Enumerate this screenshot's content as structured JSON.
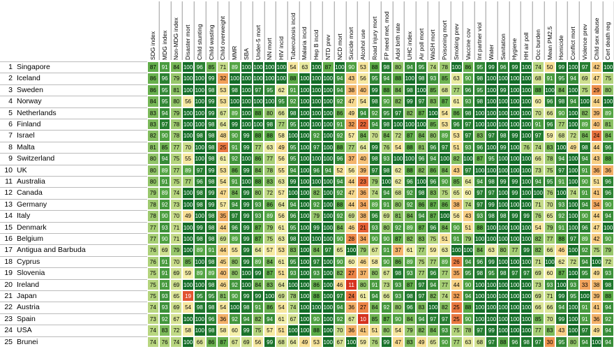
{
  "table": {
    "columns": [
      "SDG index",
      "MDG index",
      "Non-MDG index",
      "Disaster mort",
      "Child stunting",
      "Child wasting",
      "Child overweight",
      "MMR",
      "SBA",
      "Under-5 mort",
      "NN mort",
      "HIV incid",
      "Tuberculosis incid",
      "Malaria incid",
      "Hep B incid",
      "NTD prev",
      "NCD mort",
      "Suicide mort",
      "Alcohol use",
      "Road injury mort",
      "FP need met, mod",
      "Adol birth rate",
      "UHC index",
      "Air poll mort",
      "WaSH mort",
      "Poisoning mort",
      "Smoking prev",
      "Vaccine cov",
      "Int partner viol",
      "Water",
      "Sanitation",
      "Hygiene",
      "HH air poll",
      "Occ burden",
      "Mean PM2.5",
      "Homicide",
      "Conflict mort",
      "Violence prev",
      "Child sex abuse",
      "Cert death reg"
    ],
    "rows": [
      {
        "rank": 1,
        "country": "Singapore",
        "values": [
          87,
          91,
          84,
          100,
          96,
          85,
          71,
          89,
          100,
          100,
          100,
          100,
          54,
          63,
          100,
          87,
          100,
          90,
          53,
          88,
          98,
          80,
          94,
          95,
          74,
          78,
          100,
          86,
          95,
          99,
          96,
          99,
          100,
          74,
          50,
          99,
          100,
          97,
          42,
          100
        ]
      },
      {
        "rank": 2,
        "country": "Iceland",
        "values": [
          86,
          96,
          79,
          100,
          100,
          99,
          32,
          100,
          100,
          100,
          100,
          100,
          88,
          100,
          100,
          100,
          94,
          43,
          56,
          95,
          94,
          88,
          100,
          98,
          93,
          85,
          63,
          90,
          98,
          100,
          100,
          100,
          100,
          68,
          91,
          95,
          94,
          69,
          47,
          75
        ]
      },
      {
        "rank": 3,
        "country": "Sweden",
        "values": [
          86,
          95,
          81,
          100,
          100,
          98,
          53,
          98,
          100,
          97,
          95,
          62,
          91,
          100,
          100,
          100,
          94,
          38,
          40,
          99,
          88,
          84,
          98,
          100,
          85,
          68,
          77,
          96,
          95,
          100,
          99,
          100,
          100,
          88,
          100,
          84,
          100,
          75,
          29,
          80
        ]
      },
      {
        "rank": 4,
        "country": "Norway",
        "values": [
          84,
          95,
          80,
          56,
          100,
          99,
          53,
          100,
          100,
          100,
          100,
          95,
          92,
          100,
          100,
          100,
          92,
          47,
          54,
          98,
          90,
          82,
          99,
          97,
          83,
          87,
          61,
          93,
          98,
          100,
          100,
          100,
          100,
          60,
          96,
          98,
          94,
          100,
          44,
          100
        ]
      },
      {
        "rank": 5,
        "country": "Netherlands",
        "values": [
          83,
          94,
          79,
          100,
          100,
          99,
          67,
          89,
          100,
          88,
          80,
          66,
          98,
          100,
          100,
          100,
          86,
          49,
          94,
          92,
          95,
          97,
          82,
          87,
          100,
          54,
          86,
          98,
          100,
          100,
          100,
          100,
          100,
          70,
          66,
          90,
          100,
          82,
          39,
          89
        ]
      },
      {
        "rank": 6,
        "country": "Finland",
        "values": [
          83,
          97,
          78,
          100,
          100,
          98,
          64,
          99,
          100,
          100,
          98,
          77,
          95,
          100,
          100,
          100,
          91,
          32,
          22,
          94,
          98,
          100,
          100,
          100,
          85,
          53,
          96,
          97,
          100,
          100,
          100,
          100,
          100,
          91,
          96,
          77,
          100,
          89,
          40,
          81
        ]
      },
      {
        "rank": 7,
        "country": "Israel",
        "values": [
          82,
          90,
          78,
          100,
          98,
          98,
          48,
          90,
          99,
          88,
          88,
          58,
          100,
          100,
          92,
          100,
          92,
          57,
          84,
          70,
          84,
          72,
          87,
          84,
          80,
          89,
          53,
          97,
          83,
          97,
          98,
          99,
          100,
          97,
          59,
          68,
          72,
          84,
          24,
          84
        ]
      },
      {
        "rank": 8,
        "country": "Malta",
        "values": [
          81,
          85,
          77,
          70,
          100,
          98,
          25,
          91,
          99,
          77,
          63,
          49,
          95,
          100,
          97,
          100,
          88,
          77,
          64,
          99,
          76,
          54,
          88,
          81,
          96,
          97,
          51,
          93,
          96,
          100,
          99,
          100,
          76,
          74,
          83,
          100,
          49,
          98,
          44,
          96
        ]
      },
      {
        "rank": 9,
        "country": "Switzerland",
        "values": [
          80,
          94,
          75,
          55,
          100,
          98,
          61,
          92,
          100,
          86,
          77,
          56,
          95,
          100,
          100,
          100,
          96,
          37,
          40,
          98,
          93,
          100,
          100,
          96,
          94,
          100,
          82,
          100,
          87,
          95,
          100,
          100,
          100,
          66,
          78,
          94,
          100,
          94,
          43,
          88
        ]
      },
      {
        "rank": 10,
        "country": "UK",
        "values": [
          80,
          89,
          77,
          89,
          97,
          99,
          53,
          86,
          99,
          84,
          78,
          55,
          94,
          100,
          96,
          94,
          52,
          56,
          39,
          97,
          98,
          62,
          88,
          82,
          86,
          84,
          43,
          97,
          100,
          100,
          100,
          100,
          100,
          73,
          75,
          97,
          100,
          91,
          36,
          36
        ]
      },
      {
        "rank": 11,
        "country": "Australia",
        "values": [
          80,
          91,
          75,
          77,
          96,
          98,
          54,
          91,
          100,
          88,
          83,
          63,
          99,
          100,
          100,
          100,
          94,
          44,
          23,
          79,
          100,
          62,
          96,
          100,
          96,
          90,
          85,
          64,
          94,
          98,
          99,
          99,
          100,
          94,
          95,
          91,
          100,
          90,
          51,
          96
        ]
      },
      {
        "rank": 12,
        "country": "Canada",
        "values": [
          79,
          89,
          74,
          100,
          98,
          99,
          47,
          84,
          99,
          80,
          72,
          57,
          100,
          100,
          82,
          100,
          92,
          47,
          36,
          74,
          94,
          68,
          92,
          98,
          83,
          75,
          65,
          60,
          97,
          97,
          100,
          99,
          100,
          100,
          76,
          100,
          74,
          91,
          41,
          96
        ]
      },
      {
        "rank": 13,
        "country": "Germany",
        "values": [
          78,
          92,
          73,
          100,
          98,
          99,
          57,
          94,
          99,
          93,
          86,
          64,
          94,
          100,
          92,
          100,
          88,
          44,
          34,
          89,
          91,
          80,
          92,
          86,
          87,
          86,
          38,
          74,
          97,
          99,
          100,
          100,
          100,
          71,
          70,
          93,
          100,
          94,
          34,
          90
        ]
      },
      {
        "rank": 14,
        "country": "Italy",
        "values": [
          78,
          90,
          70,
          49,
          100,
          98,
          35,
          97,
          99,
          93,
          89,
          56,
          96,
          100,
          79,
          100,
          92,
          69,
          38,
          96,
          69,
          81,
          84,
          94,
          87,
          100,
          56,
          43,
          93,
          98,
          98,
          99,
          99,
          76,
          65,
          92,
          100,
          90,
          44,
          94
        ]
      },
      {
        "rank": 15,
        "country": "Denmark",
        "values": [
          77,
          93,
          71,
          100,
          99,
          98,
          44,
          96,
          99,
          87,
          79,
          61,
          95,
          100,
          99,
          100,
          84,
          46,
          21,
          93,
          80,
          92,
          89,
          87,
          96,
          84,
          90,
          51,
          88,
          100,
          100,
          100,
          100,
          54,
          79,
          91,
          100,
          96,
          47,
          100
        ]
      },
      {
        "rank": 16,
        "country": "Belgium",
        "values": [
          77,
          90,
          71,
          100,
          98,
          98,
          69,
          89,
          99,
          87,
          75,
          63,
          98,
          100,
          100,
          100,
          90,
          28,
          34,
          90,
          90,
          87,
          82,
          83,
          75,
          51,
          91,
          79,
          100,
          100,
          100,
          100,
          100,
          82,
          77,
          88,
          97,
          89,
          42,
          90
        ]
      },
      {
        "rank": 17,
        "country": "Antigua and Barbuda",
        "values": [
          76,
          69,
          79,
          100,
          89,
          91,
          44,
          55,
          99,
          64,
          57,
          53,
          83,
          100,
          84,
          97,
          65,
          100,
          79,
          67,
          91,
          37,
          61,
          77,
          59,
          63,
          100,
          100,
          84,
          63,
          80,
          77,
          99,
          82,
          66,
          46,
          100,
          92,
          75,
          79
        ]
      },
      {
        "rank": 18,
        "country": "Cyprus",
        "values": [
          76,
          91,
          70,
          85,
          100,
          98,
          45,
          80,
          99,
          89,
          84,
          61,
          95,
          100,
          97,
          100,
          90,
          60,
          46,
          58,
          90,
          86,
          89,
          75,
          77,
          89,
          26,
          94,
          96,
          99,
          100,
          100,
          100,
          71,
          100,
          62,
          72,
          94,
          100,
          72
        ]
      },
      {
        "rank": 19,
        "country": "Slovenia",
        "values": [
          75,
          91,
          69,
          59,
          89,
          89,
          40,
          80,
          100,
          99,
          87,
          51,
          93,
          100,
          93,
          100,
          82,
          27,
          37,
          80,
          67,
          98,
          93,
          77,
          96,
          77,
          35,
          95,
          98,
          95,
          98,
          97,
          97,
          69,
          60,
          87,
          100,
          95,
          49,
          93
        ]
      },
      {
        "rank": 20,
        "country": "Ireland",
        "values": [
          75,
          91,
          69,
          100,
          100,
          98,
          46,
          92,
          100,
          84,
          83,
          64,
          100,
          100,
          86,
          100,
          46,
          11,
          80,
          91,
          73,
          93,
          87,
          97,
          94,
          77,
          44,
          90,
          100,
          100,
          100,
          100,
          100,
          73,
          93,
          100,
          93,
          33,
          38,
          98
        ]
      },
      {
        "rank": 21,
        "country": "Japan",
        "values": [
          75,
          93,
          65,
          19,
          95,
          95,
          81,
          90,
          99,
          99,
          100,
          69,
          78,
          100,
          88,
          100,
          97,
          24,
          61,
          94,
          66,
          93,
          98,
          97,
          82,
          74,
          32,
          94,
          100,
          100,
          100,
          100,
          100,
          69,
          71,
          99,
          95,
          100,
          39,
          88
        ]
      },
      {
        "rank": 22,
        "country": "Austria",
        "values": [
          74,
          93,
          69,
          54,
          98,
          98,
          54,
          100,
          98,
          91,
          86,
          54,
          74,
          100,
          100,
          100,
          94,
          36,
          27,
          84,
          92,
          80,
          96,
          83,
          100,
          82,
          25,
          88,
          100,
          100,
          100,
          100,
          100,
          66,
          66,
          94,
          100,
          91,
          41,
          94
        ]
      },
      {
        "rank": 23,
        "country": "Spain",
        "values": [
          73,
          92,
          67,
          100,
          100,
          96,
          36,
          92,
          94,
          82,
          94,
          61,
          67,
          100,
          90,
          100,
          92,
          67,
          10,
          85,
          87,
          90,
          84,
          94,
          97,
          97,
          25,
          90,
          100,
          100,
          100,
          100,
          100,
          85,
          70,
          99,
          100,
          91,
          36,
          92
        ]
      },
      {
        "rank": 24,
        "country": "USA",
        "values": [
          74,
          83,
          72,
          58,
          100,
          98,
          58,
          60,
          99,
          75,
          57,
          51,
          100,
          100,
          88,
          100,
          70,
          36,
          41,
          51,
          80,
          54,
          79,
          82,
          84,
          93,
          75,
          78,
          97,
          99,
          100,
          100,
          100,
          77,
          83,
          43,
          100,
          97,
          49,
          94
        ]
      },
      {
        "rank": 25,
        "country": "Brunei",
        "values": [
          74,
          76,
          74,
          100,
          66,
          86,
          87,
          67,
          69,
          56,
          99,
          68,
          64,
          49,
          53,
          100,
          67,
          100,
          59,
          76,
          99,
          47,
          83,
          49,
          65,
          90,
          77,
          63,
          68,
          97,
          88,
          96,
          98,
          97,
          30,
          95,
          80,
          94,
          100,
          94
        ]
      }
    ]
  }
}
